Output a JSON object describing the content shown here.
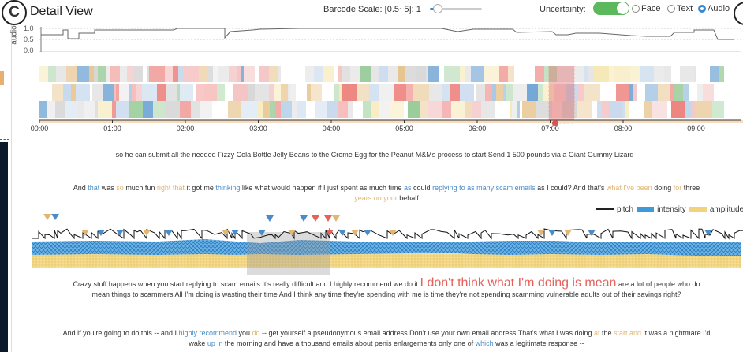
{
  "panel": {
    "badge": "C",
    "title": "Detail View"
  },
  "controls": {
    "barcode_scale_label": "Barcode Scale: [0.5~5]: 1",
    "uncertainty_label": "Uncertainty:",
    "uncertainty_on": true,
    "radio_options": [
      "Face",
      "Text",
      "Audio"
    ],
    "radio_selected": "Audio"
  },
  "audio_panel": {
    "axis_label": "audio",
    "y_ticks": [
      "1.0",
      "0.5",
      "0.0"
    ]
  },
  "timeline": {
    "ticks": [
      "00:00",
      "01:00",
      "02:00",
      "03:00",
      "04:00",
      "05:00",
      "06:00",
      "07:00",
      "08:00",
      "09:00"
    ]
  },
  "transcript": {
    "line1": "so he can submit all the needed Fizzy Cola Bottle Jelly Beans to the Creme Egg for the Peanut M&Ms process to start Send 1 500 pounds via a Giant Gummy Lizard",
    "line2_row1_parts": [
      {
        "t": "And ",
        "c": ""
      },
      {
        "t": "that",
        "c": "hl-blue"
      },
      {
        "t": " was ",
        "c": ""
      },
      {
        "t": "so",
        "c": "hl-tan"
      },
      {
        "t": " much fun ",
        "c": ""
      },
      {
        "t": "right that",
        "c": "hl-tan"
      },
      {
        "t": " it got me ",
        "c": ""
      },
      {
        "t": "thinking",
        "c": "hl-blue"
      },
      {
        "t": " like what would happen if I just spent as much time ",
        "c": ""
      },
      {
        "t": "as",
        "c": "hl-blue"
      },
      {
        "t": " could ",
        "c": ""
      },
      {
        "t": "replying to as many scam emails",
        "c": "hl-blue"
      },
      {
        "t": " as I could? And that's ",
        "c": ""
      },
      {
        "t": "what I've been",
        "c": "hl-tan"
      },
      {
        "t": " doing ",
        "c": ""
      },
      {
        "t": "for",
        "c": "hl-tan"
      },
      {
        "t": " three",
        "c": ""
      }
    ],
    "line2_row2_parts": [
      {
        "t": "years on your",
        "c": "hl-tan"
      },
      {
        "t": " behalf",
        "c": ""
      }
    ],
    "line3_before": "Crazy stuff happens when you start replying to scam emails It's really difficult and I highly recommend we do it",
    "line3_quote": "I don't think what I'm doing is mean",
    "line3_after": "are a lot of people who do",
    "line3_row2": "mean things to scammers All I'm doing is wasting their time And I think any time they're spending with me is time they're not spending scamming vulnerable adults out of their savings right?",
    "line4_row1_parts": [
      {
        "t": "And if you're going to do this -- and I ",
        "c": ""
      },
      {
        "t": "highly recommend",
        "c": "hl-blue"
      },
      {
        "t": " you ",
        "c": ""
      },
      {
        "t": "do",
        "c": "hl-tan"
      },
      {
        "t": " -- get yourself a pseudonymous email address Don't use your own email address That's what I was doing ",
        "c": ""
      },
      {
        "t": "at",
        "c": "hl-tan"
      },
      {
        "t": " the ",
        "c": ""
      },
      {
        "t": "start and",
        "c": "hl-tan"
      },
      {
        "t": " it was a nightmare I'd",
        "c": ""
      }
    ],
    "line4_row2_parts": [
      {
        "t": "wake ",
        "c": ""
      },
      {
        "t": "up in",
        "c": "hl-blue"
      },
      {
        "t": " the morning and have a thousand emails about penis enlargements only one of ",
        "c": ""
      },
      {
        "t": "which",
        "c": "hl-blue"
      },
      {
        "t": " was a legitimate response --",
        "c": ""
      }
    ]
  },
  "legend": {
    "items": [
      {
        "key": "pitch",
        "label": "pitch"
      },
      {
        "key": "intensity",
        "label": "intensity"
      },
      {
        "key": "amplitude",
        "label": "amplitude"
      }
    ]
  },
  "colors": {
    "accent": "#3a87d0",
    "toggle_on": "#5cb85c",
    "emotion_red": "#e8605a",
    "emotion_tan": "#e1b672",
    "emotion_blue": "#4a8cc9",
    "intensity_blue": "#3e9ad8",
    "amplitude_yellow": "#f2d27a"
  },
  "icons": {
    "section_badge": "letter-c-badge",
    "highlight_marker": "triangle-marker-icon",
    "playhead": "playhead-marker"
  }
}
